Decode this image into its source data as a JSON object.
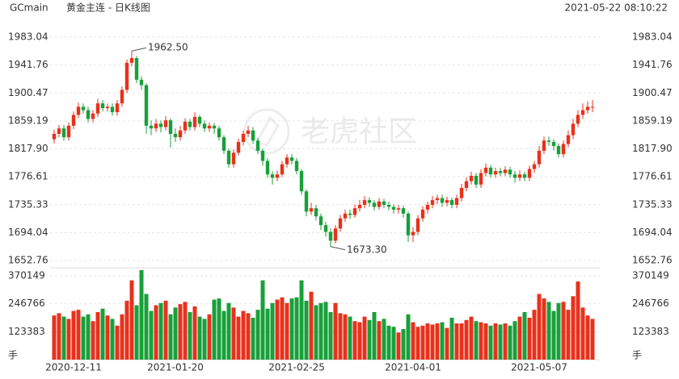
{
  "chart_data": {
    "type": "candlestick",
    "symbol": "GCmain",
    "title": "黄金主连 - 日K线图",
    "timestamp": "2021-05-22 08:10:22",
    "watermark": "老虎社区",
    "up_color": "#e8311c",
    "down_color": "#18a03a",
    "categories": [
      null,
      null,
      null,
      null,
      "2020-12-11",
      null,
      null,
      null,
      null,
      null,
      null,
      null,
      null,
      null,
      null,
      null,
      null,
      null,
      null,
      null,
      null,
      null,
      null,
      null,
      null,
      "2021-01-20",
      null,
      null,
      null,
      null,
      null,
      null,
      null,
      null,
      null,
      null,
      null,
      null,
      null,
      null,
      null,
      null,
      null,
      null,
      null,
      null,
      null,
      null,
      null,
      null,
      "2021-02-25",
      null,
      null,
      null,
      null,
      null,
      null,
      null,
      null,
      null,
      null,
      null,
      null,
      null,
      null,
      null,
      null,
      null,
      null,
      null,
      null,
      null,
      null,
      null,
      "2021-04-01",
      null,
      null,
      null,
      null,
      null,
      null,
      null,
      null,
      null,
      null,
      null,
      null,
      null,
      null,
      null,
      null,
      null,
      null,
      null,
      null,
      null,
      null,
      null,
      null,
      null,
      "2021-05-07",
      null,
      null,
      null,
      null,
      null,
      null,
      null,
      null,
      null,
      null,
      null
    ],
    "open": [
      1832,
      1840,
      1848,
      1835,
      1852,
      1868,
      1880,
      1875,
      1862,
      1870,
      1885,
      1878,
      1880,
      1872,
      1885,
      1905,
      1945,
      1952,
      1920,
      1912,
      1852,
      1848,
      1855,
      1850,
      1860,
      1840,
      1835,
      1845,
      1858,
      1850,
      1865,
      1855,
      1848,
      1852,
      1848,
      1835,
      1815,
      1795,
      1812,
      1828,
      1840,
      1845,
      1830,
      1815,
      1800,
      1780,
      1775,
      1780,
      1795,
      1805,
      1800,
      1785,
      1755,
      1725,
      1730,
      1718,
      1705,
      1695,
      1682,
      1700,
      1715,
      1722,
      1720,
      1730,
      1735,
      1742,
      1738,
      1732,
      1740,
      1735,
      1732,
      1728,
      1730,
      1722,
      1690,
      1695,
      1715,
      1728,
      1735,
      1742,
      1745,
      1738,
      1742,
      1735,
      1745,
      1760,
      1770,
      1778,
      1765,
      1782,
      1790,
      1780,
      1785,
      1782,
      1787,
      1780,
      1775,
      1780,
      1775,
      1788,
      1795,
      1815,
      1830,
      1828,
      1822,
      1810,
      1825,
      1838,
      1855,
      1868,
      1875,
      1880
    ],
    "high": [
      1846,
      1853,
      1853,
      1857,
      1873,
      1886,
      1885,
      1880,
      1875,
      1892,
      1890,
      1885,
      1885,
      1890,
      1910,
      1950,
      1962.5,
      1955,
      1925,
      1915,
      1860,
      1862,
      1860,
      1866,
      1863,
      1848,
      1852,
      1863,
      1862,
      1872,
      1868,
      1860,
      1857,
      1856,
      1852,
      1838,
      1818,
      1817,
      1833,
      1845,
      1852,
      1850,
      1834,
      1818,
      1804,
      1785,
      1786,
      1800,
      1810,
      1810,
      1804,
      1788,
      1758,
      1738,
      1735,
      1722,
      1710,
      1700,
      1705,
      1720,
      1728,
      1728,
      1736,
      1742,
      1748,
      1746,
      1742,
      1745,
      1744,
      1740,
      1736,
      1735,
      1734,
      1725,
      1702,
      1720,
      1733,
      1740,
      1748,
      1750,
      1750,
      1747,
      1746,
      1750,
      1766,
      1776,
      1784,
      1782,
      1788,
      1796,
      1794,
      1790,
      1790,
      1792,
      1791,
      1785,
      1786,
      1784,
      1793,
      1800,
      1822,
      1836,
      1836,
      1832,
      1826,
      1830,
      1845,
      1862,
      1875,
      1885,
      1888,
      1890
    ],
    "low": [
      1826,
      1835,
      1830,
      1830,
      1847,
      1863,
      1870,
      1857,
      1857,
      1865,
      1873,
      1873,
      1867,
      1867,
      1880,
      1900,
      1940,
      1915,
      1905,
      1840,
      1838,
      1843,
      1842,
      1845,
      1820,
      1828,
      1830,
      1840,
      1845,
      1845,
      1850,
      1843,
      1843,
      1840,
      1830,
      1810,
      1790,
      1790,
      1808,
      1823,
      1835,
      1825,
      1810,
      1793,
      1775,
      1765,
      1770,
      1776,
      1790,
      1795,
      1780,
      1750,
      1718,
      1720,
      1712,
      1698,
      1688,
      1673.3,
      1678,
      1695,
      1710,
      1714,
      1716,
      1725,
      1730,
      1732,
      1727,
      1728,
      1730,
      1727,
      1722,
      1722,
      1716,
      1680,
      1680,
      1690,
      1710,
      1722,
      1730,
      1736,
      1732,
      1733,
      1730,
      1730,
      1740,
      1755,
      1765,
      1760,
      1760,
      1777,
      1775,
      1775,
      1777,
      1777,
      1775,
      1768,
      1770,
      1770,
      1770,
      1782,
      1790,
      1810,
      1822,
      1815,
      1805,
      1805,
      1820,
      1832,
      1850,
      1862,
      1870,
      1872
    ],
    "close": [
      1840,
      1848,
      1835,
      1852,
      1868,
      1880,
      1875,
      1862,
      1870,
      1885,
      1878,
      1880,
      1872,
      1885,
      1905,
      1945,
      1952,
      1920,
      1912,
      1852,
      1848,
      1855,
      1850,
      1860,
      1840,
      1835,
      1845,
      1858,
      1850,
      1865,
      1855,
      1848,
      1852,
      1848,
      1835,
      1815,
      1795,
      1812,
      1828,
      1840,
      1845,
      1830,
      1815,
      1800,
      1780,
      1775,
      1780,
      1795,
      1805,
      1800,
      1785,
      1755,
      1725,
      1730,
      1718,
      1705,
      1695,
      1682,
      1700,
      1715,
      1722,
      1720,
      1730,
      1735,
      1742,
      1738,
      1732,
      1740,
      1735,
      1732,
      1728,
      1730,
      1722,
      1690,
      1695,
      1715,
      1728,
      1735,
      1742,
      1745,
      1738,
      1742,
      1735,
      1745,
      1760,
      1770,
      1778,
      1765,
      1782,
      1790,
      1780,
      1785,
      1782,
      1787,
      1780,
      1775,
      1780,
      1775,
      1788,
      1795,
      1815,
      1830,
      1828,
      1822,
      1810,
      1825,
      1838,
      1855,
      1868,
      1875,
      1880,
      1880
    ],
    "ylim": [
      1652.76,
      1983.04
    ],
    "yticks": [
      1983.04,
      1941.76,
      1900.47,
      1859.19,
      {
        "value": 1817.9,
        "label": "1817.90"
      },
      1776.61,
      1735.33,
      1694.04,
      1652.76
    ],
    "annotations": [
      {
        "label": "1962.50",
        "value": 1962.5
      },
      {
        "label": "1673.30",
        "value": 1673.3
      }
    ],
    "volume": {
      "unit": "手",
      "values": [
        195000,
        205000,
        190000,
        180000,
        215000,
        220000,
        190000,
        200000,
        170000,
        210000,
        225000,
        195000,
        180000,
        150000,
        200000,
        260000,
        350000,
        240000,
        395000,
        290000,
        215000,
        240000,
        250000,
        260000,
        200000,
        230000,
        245000,
        255000,
        210000,
        235000,
        190000,
        180000,
        200000,
        265000,
        270000,
        215000,
        250000,
        230000,
        190000,
        215000,
        205000,
        185000,
        220000,
        350000,
        225000,
        250000,
        265000,
        275000,
        250000,
        270000,
        275000,
        350000,
        260000,
        300000,
        240000,
        250000,
        255000,
        210000,
        250000,
        205000,
        200000,
        190000,
        170000,
        165000,
        190000,
        175000,
        210000,
        170000,
        180000,
        150000,
        145000,
        120000,
        135000,
        200000,
        165000,
        145000,
        150000,
        160000,
        155000,
        160000,
        165000,
        140000,
        185000,
        160000,
        160000,
        175000,
        190000,
        170000,
        165000,
        160000,
        150000,
        160000,
        155000,
        160000,
        150000,
        170000,
        190000,
        210000,
        185000,
        220000,
        290000,
        270000,
        255000,
        215000,
        250000,
        255000,
        220000,
        280000,
        345000,
        230000,
        195000,
        180000
      ],
      "ylim": [
        0,
        370149
      ],
      "yticks": [
        123383,
        246766,
        370149
      ]
    }
  }
}
